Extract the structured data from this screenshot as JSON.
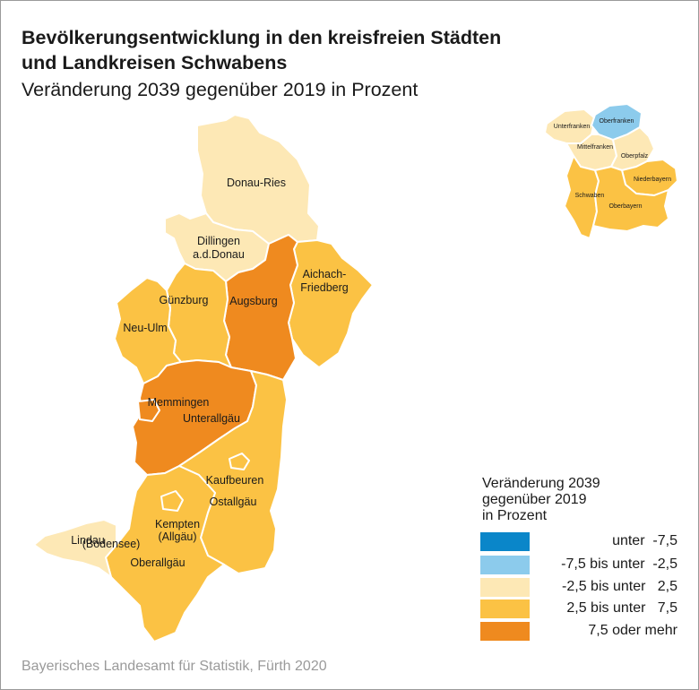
{
  "title_line1": "Bevölkerungsentwicklung in den kreisfreien Städten",
  "title_line2": "und Landkreisen Schwabens",
  "subtitle": "Veränderung 2039 gegenüber 2019 in Prozent",
  "source": "Bayerisches Landesamt für Statistik, Fürth 2020",
  "colors": {
    "class1": "#0a86c9",
    "class2": "#8ccbec",
    "class3": "#fde8b5",
    "class4": "#fbc244",
    "class5": "#ef8a1f"
  },
  "regions": [
    {
      "name_line1": "Donau-Ries",
      "name_line2": "",
      "class": "class3"
    },
    {
      "name_line1": "Dillingen",
      "name_line2": "a.d.Donau",
      "class": "class3"
    },
    {
      "name_line1": "Aichach-",
      "name_line2": "Friedberg",
      "class": "class4"
    },
    {
      "name_line1": "Augsburg",
      "name_line2": "",
      "class": "class5"
    },
    {
      "name_line1": "Günzburg",
      "name_line2": "",
      "class": "class4"
    },
    {
      "name_line1": "Neu-Ulm",
      "name_line2": "",
      "class": "class4"
    },
    {
      "name_line1": "Memmingen",
      "name_line2": "",
      "class": "class5"
    },
    {
      "name_line1": "Unterallgäu",
      "name_line2": "",
      "class": "class5"
    },
    {
      "name_line1": "Kaufbeuren",
      "name_line2": "",
      "class": "class4"
    },
    {
      "name_line1": "Ostallgäu",
      "name_line2": "",
      "class": "class4"
    },
    {
      "name_line1": "Kempten",
      "name_line2": "(Allgäu)",
      "class": "class4"
    },
    {
      "name_line1": "Oberallgäu",
      "name_line2": "",
      "class": "class4"
    },
    {
      "name_line1": "Lindau",
      "name_line2": "(Bodensee)",
      "class": "class3"
    }
  ],
  "inset": [
    {
      "name": "Unterfranken",
      "class": "class3"
    },
    {
      "name": "Oberfranken",
      "class": "class2"
    },
    {
      "name": "Mittelfranken",
      "class": "class3"
    },
    {
      "name": "Oberpfalz",
      "class": "class3"
    },
    {
      "name": "Niederbayern",
      "class": "class4"
    },
    {
      "name": "Schwaben",
      "class": "class4"
    },
    {
      "name": "Oberbayern",
      "class": "class4"
    }
  ],
  "legend": {
    "title_line1": "Veränderung 2039",
    "title_line2": "gegenüber 2019",
    "title_line3": "in Prozent",
    "items": [
      {
        "label": "unter  -7,5",
        "class": "class1"
      },
      {
        "label": "-7,5 bis unter  -2,5",
        "class": "class2"
      },
      {
        "label": "-2,5 bis unter   2,5",
        "class": "class3"
      },
      {
        "label": "2,5 bis unter   7,5",
        "class": "class4"
      },
      {
        "label": "7,5 oder mehr",
        "class": "class5"
      }
    ]
  }
}
